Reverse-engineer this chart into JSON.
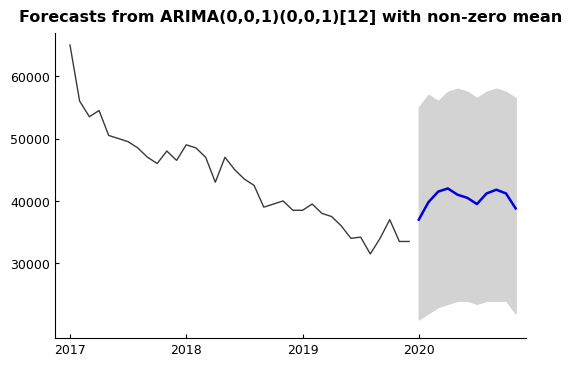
{
  "title": "Forecasts from ARIMA(0,0,1)(0,0,1)[12] with non-zero mean",
  "title_fontsize": 11.5,
  "background_color": "#ffffff",
  "plot_bg_color": "#ffffff",
  "xlim": [
    2016.87,
    2020.92
  ],
  "ylim": [
    18000,
    67000
  ],
  "yticks": [
    30000,
    40000,
    50000,
    60000
  ],
  "xticks": [
    2017,
    2018,
    2019,
    2020
  ],
  "historical_x": [
    2017.0,
    2017.083,
    2017.167,
    2017.25,
    2017.333,
    2017.417,
    2017.5,
    2017.583,
    2017.667,
    2017.75,
    2017.833,
    2017.917,
    2018.0,
    2018.083,
    2018.167,
    2018.25,
    2018.333,
    2018.417,
    2018.5,
    2018.583,
    2018.667,
    2018.75,
    2018.833,
    2018.917,
    2019.0,
    2019.083,
    2019.167,
    2019.25,
    2019.333,
    2019.417,
    2019.5,
    2019.583,
    2019.667,
    2019.75,
    2019.833,
    2019.917
  ],
  "historical_y": [
    65000,
    56000,
    53500,
    54500,
    50500,
    50000,
    49500,
    48500,
    47000,
    46000,
    48000,
    46500,
    49000,
    48500,
    47000,
    43000,
    47000,
    45000,
    43500,
    42500,
    39000,
    39500,
    40000,
    38500,
    38500,
    39500,
    38000,
    37500,
    36000,
    34000,
    34200,
    31500,
    34000,
    37000,
    33500,
    33500
  ],
  "forecast_x": [
    2020.0,
    2020.083,
    2020.167,
    2020.25,
    2020.333,
    2020.417,
    2020.5,
    2020.583,
    2020.667,
    2020.75,
    2020.833
  ],
  "forecast_y": [
    37000,
    39800,
    41500,
    42000,
    41000,
    40500,
    39500,
    41200,
    41800,
    41200,
    38800
  ],
  "upper_ci": [
    55000,
    57000,
    56000,
    57500,
    58000,
    57500,
    56500,
    57500,
    58000,
    57500,
    56500
  ],
  "lower_ci": [
    21000,
    22000,
    23000,
    23500,
    24000,
    24000,
    23500,
    24000,
    24000,
    24000,
    22000
  ],
  "hist_color": "#3a3a3a",
  "forecast_color": "#0000dd",
  "shade_color": "#d3d3d3"
}
